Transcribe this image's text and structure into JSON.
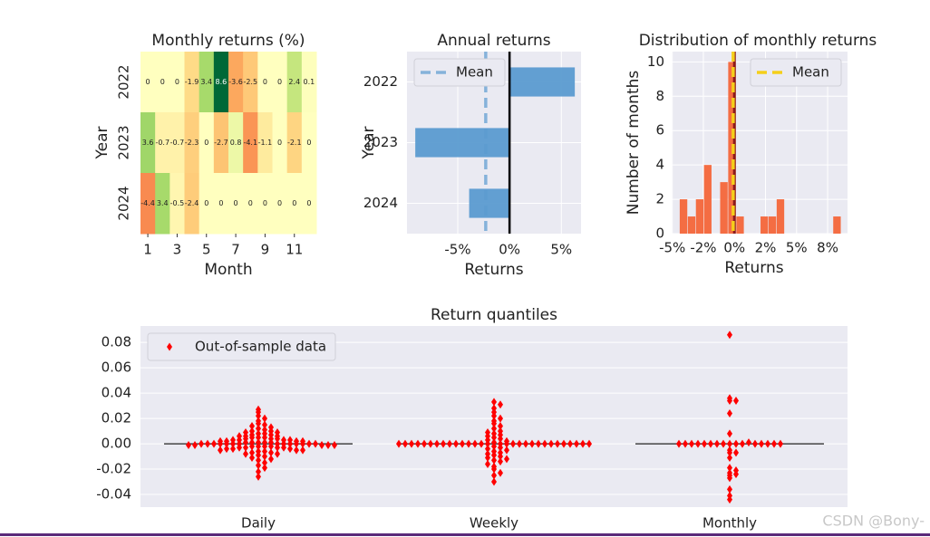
{
  "chart_data": [
    {
      "type": "heatmap",
      "title": "Monthly returns (%)",
      "x_label": "Month",
      "y_label": "Year",
      "colormap": "RdYlGn",
      "categories": [
        "2022",
        "2023",
        "2024"
      ],
      "values": [
        [
          0,
          0,
          0,
          -1.9,
          3.4,
          8.6,
          -3.6,
          -2.5,
          0,
          0,
          2.4,
          0.1
        ],
        [
          3.6,
          -0.7,
          -0.7,
          -2.3,
          0,
          -2.7,
          0.8,
          -4.1,
          -1.1,
          0,
          -2.1,
          0
        ],
        [
          -4.4,
          3.4,
          -0.5,
          -2.4,
          0,
          0,
          0,
          0,
          0,
          0,
          0,
          0
        ]
      ],
      "xlim": [
        0.5,
        12.5
      ],
      "xticks": [
        1,
        3,
        5,
        7,
        9,
        11
      ]
    },
    {
      "type": "hbar",
      "title": "Annual returns",
      "x_label": "Returns",
      "y_label": "Year",
      "color": "#5b9bd0",
      "categories": [
        "2022",
        "2023",
        "2024"
      ],
      "values": [
        6.3,
        -9.1,
        -3.9
      ],
      "mean": -2.3,
      "mean_label": "Mean",
      "legend": "upper left",
      "xlim": [
        -9.9,
        6.9
      ],
      "xticks": [
        {
          "value": -5,
          "label": "-5%"
        },
        {
          "value": 0,
          "label": "0%"
        },
        {
          "value": 5,
          "label": "5%"
        }
      ],
      "grid": true
    },
    {
      "type": "histogram",
      "title": "Distribution of monthly returns",
      "x_label": "Returns",
      "y_label": "Number of months",
      "color": "#f46d43",
      "bins": [
        -4.4,
        -3.75,
        -3.1,
        -2.45,
        -1.8,
        -1.15,
        -0.5,
        0.15,
        0.8,
        1.45,
        2.1,
        2.75,
        3.4,
        4.05,
        4.7,
        5.35,
        6.0,
        6.65,
        7.3,
        7.95,
        8.6
      ],
      "counts": [
        2,
        1,
        2,
        4,
        0,
        3,
        10,
        1,
        0,
        0,
        1,
        1,
        2,
        0,
        0,
        0,
        0,
        0,
        0,
        1
      ],
      "mean": -0.1,
      "mean_label": "Mean",
      "mean_color": "#f5cf1a",
      "legend": "upper right",
      "xlim": [
        -5.05,
        9.1
      ],
      "xticks": [
        {
          "value": -5,
          "label": "-5%"
        },
        {
          "value": -2.5,
          "label": "-2%"
        },
        {
          "value": 0,
          "label": "0%"
        },
        {
          "value": 2.5,
          "label": "2%"
        },
        {
          "value": 5,
          "label": "5%"
        },
        {
          "value": 7.5,
          "label": "8%"
        }
      ],
      "ylim": [
        0,
        10.6
      ],
      "yticks": [
        0,
        2,
        4,
        6,
        8,
        10
      ],
      "grid": true
    },
    {
      "type": "swarm",
      "title": "Return quantiles",
      "categories": [
        "Daily",
        "Weekly",
        "Monthly"
      ],
      "legend": "upper left",
      "series": [
        {
          "name": "Out-of-sample data",
          "color": "#ff0000",
          "values": [
            [
              0.027,
              0.025,
              0.022,
              0.02,
              0.018,
              0.016,
              0.015,
              0.014,
              0.013,
              0.012,
              0.011,
              0.01,
              0.01,
              0.009,
              0.009,
              0.008,
              0.008,
              0.007,
              0.007,
              0.006,
              0.006,
              0.006,
              0.005,
              0.005,
              0.005,
              0.004,
              0.004,
              0.004,
              0.003,
              0.003,
              0.003,
              0.003,
              0.002,
              0.002,
              0.002,
              0.002,
              0.001,
              0.001,
              0.001,
              0.001,
              0.001,
              0,
              0,
              0,
              0,
              0,
              0,
              0,
              0,
              0,
              0,
              0,
              0,
              0,
              0,
              -0.001,
              -0.001,
              -0.001,
              -0.001,
              -0.001,
              -0.002,
              -0.002,
              -0.002,
              -0.002,
              -0.003,
              -0.003,
              -0.003,
              -0.003,
              -0.004,
              -0.004,
              -0.004,
              -0.005,
              -0.005,
              -0.005,
              -0.006,
              -0.006,
              -0.007,
              -0.007,
              -0.008,
              -0.008,
              -0.009,
              -0.01,
              -0.011,
              -0.012,
              -0.013,
              -0.015,
              -0.017,
              -0.019,
              -0.022,
              -0.026
            ],
            [
              0.033,
              0.031,
              0.028,
              0.025,
              0.022,
              0.02,
              0.018,
              0.016,
              0.014,
              0.012,
              0.01,
              0.009,
              0.008,
              0.007,
              0.006,
              0.005,
              0.004,
              0.003,
              0.002,
              0.001,
              0,
              0,
              0,
              0,
              0,
              0,
              0,
              0,
              0,
              0,
              0,
              0,
              0,
              0,
              0,
              0,
              0,
              0,
              0,
              0,
              0,
              0,
              0,
              0,
              0,
              0,
              0,
              0,
              0,
              0,
              -0.002,
              -0.003,
              -0.004,
              -0.005,
              -0.006,
              -0.007,
              -0.008,
              -0.009,
              -0.01,
              -0.011,
              -0.012,
              -0.013,
              -0.014,
              -0.016,
              -0.018,
              -0.02,
              -0.023,
              -0.025,
              -0.03
            ],
            [
              0,
              0,
              0,
              -0.019,
              0.034,
              0.086,
              -0.036,
              -0.025,
              0,
              0,
              0.024,
              0.001,
              0.036,
              -0.007,
              -0.007,
              -0.023,
              0,
              -0.027,
              0.008,
              -0.041,
              -0.011,
              0,
              -0.021,
              0,
              -0.044,
              0.034,
              -0.005,
              -0.024,
              0,
              0,
              0,
              0,
              0,
              0,
              0,
              0
            ]
          ]
        }
      ],
      "ylim": [
        -0.05,
        0.093
      ],
      "yticks": [
        -0.04,
        -0.02,
        {
          "value": 0,
          "label": "0.00"
        },
        0.02,
        0.04,
        0.06,
        0.08
      ],
      "grid": true
    }
  ],
  "watermark": "CSDN @Bony-"
}
